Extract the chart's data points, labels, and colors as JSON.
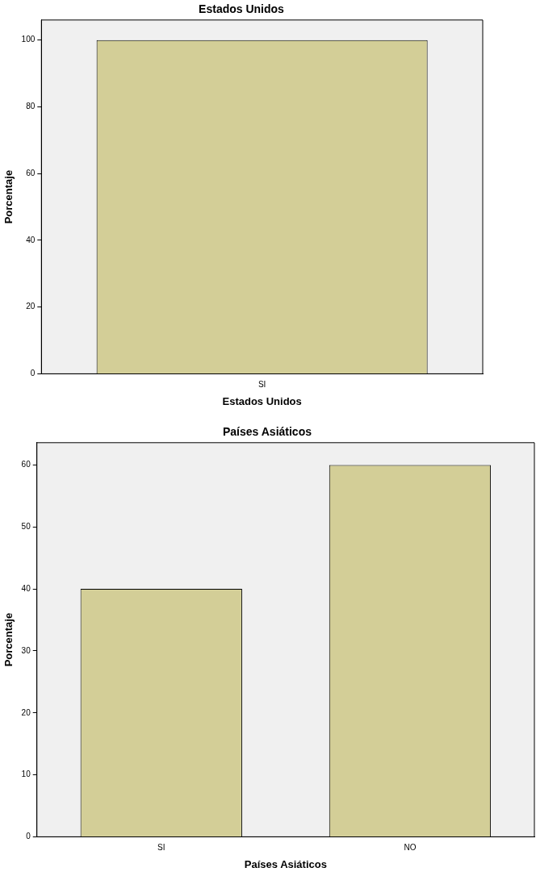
{
  "chart_data": [
    {
      "type": "bar",
      "title": "Estados Unidos",
      "xlabel": "Estados Unidos",
      "ylabel": "Porcentaje",
      "categories": [
        "SI"
      ],
      "values": [
        100
      ],
      "color": "#d3ce97",
      "ylim": [
        0,
        106
      ],
      "yticks": [
        0,
        20,
        40,
        60,
        80,
        100
      ],
      "grid": false,
      "legend": false
    },
    {
      "type": "bar",
      "title": "Países Asiáticos",
      "xlabel": "Países Asiáticos",
      "ylabel": "Porcentaje",
      "categories": [
        "SI",
        "NO"
      ],
      "values": [
        40,
        60
      ],
      "color": "#d3ce97",
      "ylim": [
        0,
        63.6
      ],
      "yticks": [
        0,
        10,
        20,
        30,
        40,
        50,
        60
      ],
      "grid": false,
      "legend": false
    }
  ]
}
